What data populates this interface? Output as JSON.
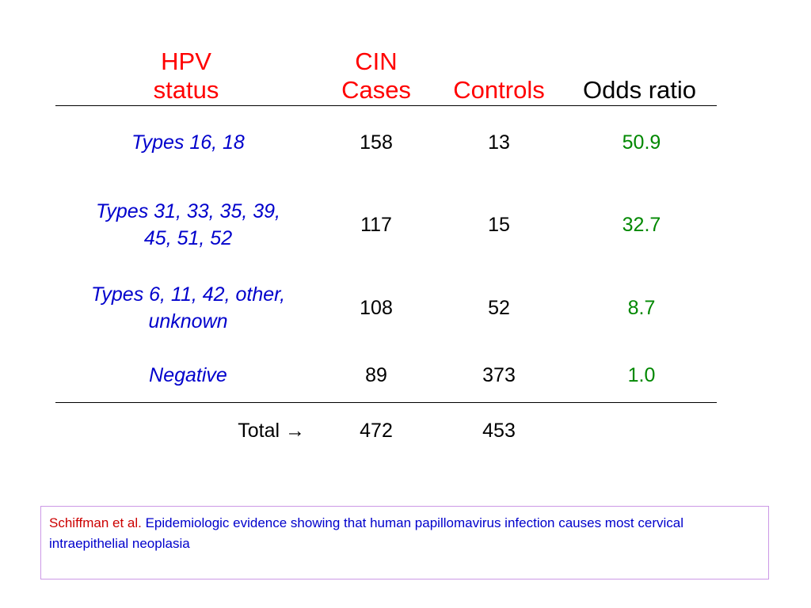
{
  "table": {
    "headers": {
      "hpv_status": [
        "HPV",
        "status"
      ],
      "cin_cases": [
        "CIN",
        "Cases"
      ],
      "controls": "Controls",
      "odds_ratio": "Odds ratio"
    },
    "rows": [
      {
        "label": [
          "Types 16, 18"
        ],
        "cases": "158",
        "controls": "13",
        "odds_ratio": "50.9"
      },
      {
        "label": [
          "Types 31, 33, 35, 39,",
          "45, 51, 52"
        ],
        "cases": "117",
        "controls": "15",
        "odds_ratio": "32.7"
      },
      {
        "label": [
          "Types 6, 11, 42, other,",
          "unknown"
        ],
        "cases": "108",
        "controls": "52",
        "odds_ratio": "8.7"
      },
      {
        "label": [
          "Negative"
        ],
        "cases": "89",
        "controls": "373",
        "odds_ratio": "1.0"
      }
    ],
    "total": {
      "label": "Total →",
      "cases": "472",
      "controls": "453"
    }
  },
  "citation": {
    "author": "Schiffman et al.",
    "title": "Epidemiologic evidence showing that human papillomavirus infection causes most cervical intraepithelial neoplasia"
  },
  "colors": {
    "header_red": "#ff0000",
    "label_blue": "#0000cc",
    "odds_green": "#008800",
    "citation_border": "#cc99e6"
  }
}
